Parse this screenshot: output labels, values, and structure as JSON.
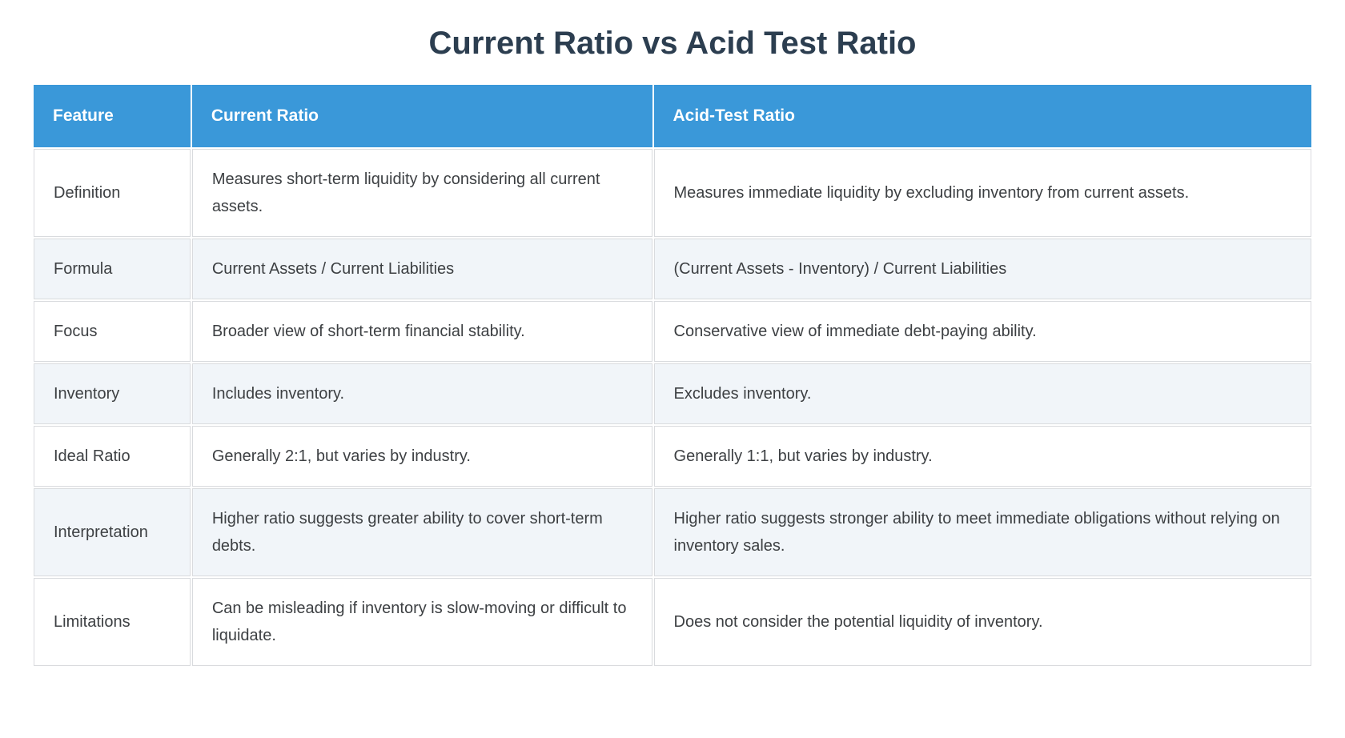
{
  "page": {
    "title": "Current Ratio vs Acid Test Ratio"
  },
  "table": {
    "columns": [
      {
        "label": "Feature"
      },
      {
        "label": "Current Ratio"
      },
      {
        "label": "Acid-Test Ratio"
      }
    ],
    "rows": [
      {
        "feature": "Definition",
        "current": "Measures short-term liquidity by considering all current assets.",
        "acid": "Measures immediate liquidity by excluding inventory from current assets."
      },
      {
        "feature": "Formula",
        "current": "Current Assets / Current Liabilities",
        "acid": "(Current Assets - Inventory) / Current Liabilities"
      },
      {
        "feature": "Focus",
        "current": "Broader view of short-term financial stability.",
        "acid": "Conservative view of immediate debt-paying ability."
      },
      {
        "feature": "Inventory",
        "current": "Includes inventory.",
        "acid": "Excludes inventory."
      },
      {
        "feature": "Ideal Ratio",
        "current": "Generally 2:1, but varies by industry.",
        "acid": "Generally 1:1, but varies by industry."
      },
      {
        "feature": "Interpretation",
        "current": "Higher ratio suggests greater ability to cover short-term debts.",
        "acid": "Higher ratio suggests stronger ability to meet immediate obligations without relying on inventory sales."
      },
      {
        "feature": "Limitations",
        "current": "Can be misleading if inventory is slow-moving or difficult to liquidate.",
        "acid": "Does not consider the potential liquidity of inventory."
      }
    ]
  },
  "theme": {
    "header_bg": "#3a98d9",
    "header_text": "#ffffff",
    "title_text": "#2c3e50",
    "row_bg": "#ffffff",
    "row_alt_bg": "#f1f5f9",
    "border": "#d9dbde",
    "body_text": "#3d4043"
  }
}
